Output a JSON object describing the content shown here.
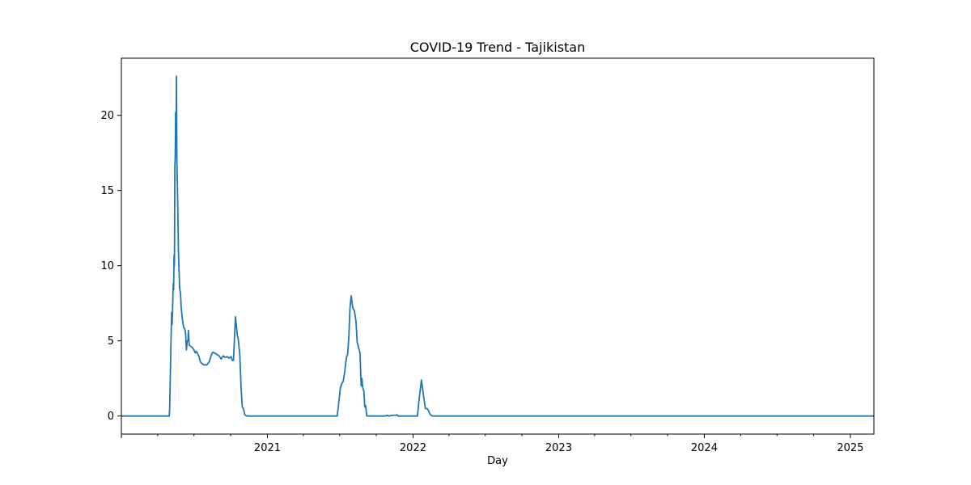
{
  "chart_data": {
    "type": "line",
    "title": "COVID-19 Trend - Tajikistan",
    "xlabel": "Day",
    "ylabel": "",
    "xlim": [
      "2020-01-01",
      "2025-03-01"
    ],
    "ylim": [
      -1.2,
      23.8
    ],
    "grid": false,
    "x_ticks": [
      {
        "label": "2021",
        "date": "2021-01-01"
      },
      {
        "label": "2022",
        "date": "2022-01-01"
      },
      {
        "label": "2023",
        "date": "2023-01-01"
      },
      {
        "label": "2024",
        "date": "2024-01-01"
      },
      {
        "label": "2025",
        "date": "2025-01-01"
      }
    ],
    "y_ticks": [
      {
        "label": "0",
        "value": 0
      },
      {
        "label": "5",
        "value": 5
      },
      {
        "label": "10",
        "value": 10
      },
      {
        "label": "15",
        "value": 15
      },
      {
        "label": "20",
        "value": 20
      }
    ],
    "series": [
      {
        "color": "#1f77b4",
        "points": [
          [
            "2020-01-01",
            0
          ],
          [
            "2020-04-30",
            0
          ],
          [
            "2020-05-01",
            0.5
          ],
          [
            "2020-05-02",
            1.8
          ],
          [
            "2020-05-04",
            4.5
          ],
          [
            "2020-05-06",
            6.9
          ],
          [
            "2020-05-07",
            6.1
          ],
          [
            "2020-05-08",
            6.8
          ],
          [
            "2020-05-10",
            8.8
          ],
          [
            "2020-05-11",
            8.4
          ],
          [
            "2020-05-12",
            10.7
          ],
          [
            "2020-05-13",
            10.0
          ],
          [
            "2020-05-14",
            16.5
          ],
          [
            "2020-05-15",
            17.2
          ],
          [
            "2020-05-16",
            20.2
          ],
          [
            "2020-05-17",
            18.0
          ],
          [
            "2020-05-18",
            22.6
          ],
          [
            "2020-05-19",
            17.2
          ],
          [
            "2020-05-21",
            14.5
          ],
          [
            "2020-05-23",
            11.0
          ],
          [
            "2020-05-26",
            8.5
          ],
          [
            "2020-05-28",
            8.2
          ],
          [
            "2020-05-30",
            7.2
          ],
          [
            "2020-06-02",
            6.4
          ],
          [
            "2020-06-05",
            5.9
          ],
          [
            "2020-06-08",
            5.8
          ],
          [
            "2020-06-10",
            5.5
          ],
          [
            "2020-06-12",
            4.4
          ],
          [
            "2020-06-14",
            5.0
          ],
          [
            "2020-06-16",
            5.0
          ],
          [
            "2020-06-17",
            5.7
          ],
          [
            "2020-06-19",
            4.7
          ],
          [
            "2020-06-25",
            4.6
          ],
          [
            "2020-07-01",
            4.4
          ],
          [
            "2020-07-04",
            4.2
          ],
          [
            "2020-07-07",
            4.3
          ],
          [
            "2020-07-13",
            4.0
          ],
          [
            "2020-07-17",
            3.6
          ],
          [
            "2020-07-25",
            3.4
          ],
          [
            "2020-08-02",
            3.4
          ],
          [
            "2020-08-08",
            3.6
          ],
          [
            "2020-08-14",
            4.1
          ],
          [
            "2020-08-17",
            4.25
          ],
          [
            "2020-08-21",
            4.2
          ],
          [
            "2020-08-27",
            4.1
          ],
          [
            "2020-09-02",
            4.0
          ],
          [
            "2020-09-07",
            3.8
          ],
          [
            "2020-09-12",
            4.0
          ],
          [
            "2020-09-17",
            3.9
          ],
          [
            "2020-09-22",
            3.95
          ],
          [
            "2020-09-27",
            3.85
          ],
          [
            "2020-10-02",
            3.95
          ],
          [
            "2020-10-05",
            3.7
          ],
          [
            "2020-10-08",
            3.7
          ],
          [
            "2020-10-11",
            5.5
          ],
          [
            "2020-10-13",
            6.6
          ],
          [
            "2020-10-16",
            5.8
          ],
          [
            "2020-10-18",
            5.3
          ],
          [
            "2020-10-20",
            5.1
          ],
          [
            "2020-10-24",
            4.0
          ],
          [
            "2020-10-27",
            1.9
          ],
          [
            "2020-10-30",
            0.6
          ],
          [
            "2020-11-02",
            0.5
          ],
          [
            "2020-11-05",
            0.1
          ],
          [
            "2020-11-10",
            0
          ],
          [
            "2021-06-25",
            0
          ],
          [
            "2021-07-03",
            1.9
          ],
          [
            "2021-07-07",
            2.2
          ],
          [
            "2021-07-10",
            2.3
          ],
          [
            "2021-07-14",
            3.0
          ],
          [
            "2021-07-18",
            3.9
          ],
          [
            "2021-07-21",
            4.1
          ],
          [
            "2021-07-24",
            5.2
          ],
          [
            "2021-07-27",
            7.2
          ],
          [
            "2021-07-30",
            8.0
          ],
          [
            "2021-08-03",
            7.2
          ],
          [
            "2021-08-07",
            7.0
          ],
          [
            "2021-08-11",
            6.3
          ],
          [
            "2021-08-14",
            4.9
          ],
          [
            "2021-08-18",
            4.5
          ],
          [
            "2021-08-21",
            4.2
          ],
          [
            "2021-08-24",
            2.0
          ],
          [
            "2021-08-26",
            2.5
          ],
          [
            "2021-08-28",
            1.9
          ],
          [
            "2021-08-31",
            1.6
          ],
          [
            "2021-09-02",
            0.6
          ],
          [
            "2021-09-04",
            0.7
          ],
          [
            "2021-09-07",
            0
          ],
          [
            "2021-10-24",
            0
          ],
          [
            "2021-10-28",
            0.05
          ],
          [
            "2021-11-02",
            0
          ],
          [
            "2021-11-10",
            0.05
          ],
          [
            "2021-11-18",
            0.05
          ],
          [
            "2021-11-22",
            0.08
          ],
          [
            "2021-11-24",
            0
          ],
          [
            "2022-01-12",
            0
          ],
          [
            "2022-01-17",
            1.3
          ],
          [
            "2022-01-22",
            2.4
          ],
          [
            "2022-01-27",
            1.4
          ],
          [
            "2022-02-01",
            0.5
          ],
          [
            "2022-02-05",
            0.5
          ],
          [
            "2022-02-08",
            0.4
          ],
          [
            "2022-02-13",
            0.1
          ],
          [
            "2022-02-18",
            0
          ],
          [
            "2025-03-01",
            0
          ]
        ]
      }
    ]
  }
}
